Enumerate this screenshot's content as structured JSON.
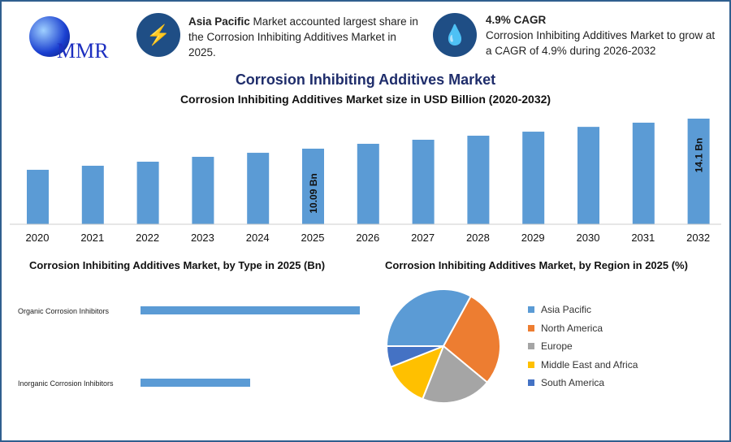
{
  "logo": {
    "text": "MMR"
  },
  "highlights": [
    {
      "icon": "lightning-icon",
      "bold": "Asia Pacific",
      "text": " Market accounted largest share in the Corrosion Inhibiting Additives Market in 2025."
    },
    {
      "icon": "drop-icon",
      "bold": "4.9% CAGR",
      "text": "Corrosion Inhibiting Additives Market to grow at a CAGR of 4.9% during 2026-2032"
    }
  ],
  "colors": {
    "bar": "#5b9bd5",
    "title": "#1f2d6b",
    "icon_bg": "#1f4e85"
  },
  "chart_data": [
    {
      "type": "bar",
      "title": "Corrosion Inhibiting Additives Market",
      "subtitle": "Corrosion Inhibiting Additives Market size in USD Billion (2020-2032)",
      "categories": [
        "2020",
        "2021",
        "2022",
        "2023",
        "2024",
        "2025",
        "2026",
        "2027",
        "2028",
        "2029",
        "2030",
        "2031",
        "2032"
      ],
      "values": [
        7.27,
        7.81,
        8.35,
        9.0,
        9.54,
        10.09,
        10.74,
        11.28,
        11.82,
        12.36,
        13.0,
        13.56,
        14.1
      ],
      "data_labels": {
        "2025": "10.09 Bn",
        "2032": "14.1 Bn"
      },
      "grid": false
    },
    {
      "type": "bar",
      "orientation": "horizontal",
      "title": "Corrosion Inhibiting Additives Market, by Type in 2025 (Bn)",
      "categories": [
        "Organic Corrosion Inhibitors",
        "Inorganic Corrosion Inhibitors"
      ],
      "values": [
        6.6,
        3.3
      ]
    },
    {
      "type": "pie",
      "title": "Corrosion Inhibiting Additives Market, by Region in 2025 (%)",
      "slices": [
        {
          "label": "Asia Pacific",
          "value": 33,
          "color": "#5b9bd5"
        },
        {
          "label": "North America",
          "value": 28,
          "color": "#ed7d31"
        },
        {
          "label": "Europe",
          "value": 20,
          "color": "#a5a5a5"
        },
        {
          "label": "Middle East and Africa",
          "value": 13,
          "color": "#ffc000"
        },
        {
          "label": "South America",
          "value": 6,
          "color": "#4472c4"
        }
      ],
      "legend": "right"
    }
  ]
}
